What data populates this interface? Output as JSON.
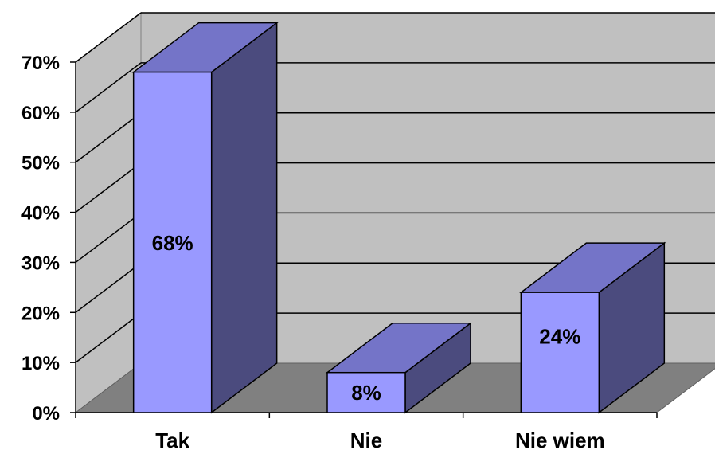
{
  "chart_data": {
    "type": "bar",
    "categories": [
      "Tak",
      "Nie",
      "Nie wiem"
    ],
    "values": [
      68,
      8,
      24
    ],
    "data_labels": [
      "68%",
      "8%",
      "24%"
    ],
    "ylim": [
      0,
      70
    ],
    "yticks": [
      0,
      10,
      20,
      30,
      40,
      50,
      60,
      70
    ],
    "ytick_labels": [
      "0%",
      "10%",
      "20%",
      "30%",
      "40%",
      "50%",
      "60%",
      "70%"
    ],
    "grid": true,
    "legend": "none",
    "style": "3d-bar",
    "colors": {
      "bar_front": "#9999ff",
      "bar_top": "#7474c8",
      "bar_side": "#4b4b7e",
      "back_wall": "#c0c0c0",
      "floor": "#808080",
      "gridline": "#000000"
    }
  }
}
